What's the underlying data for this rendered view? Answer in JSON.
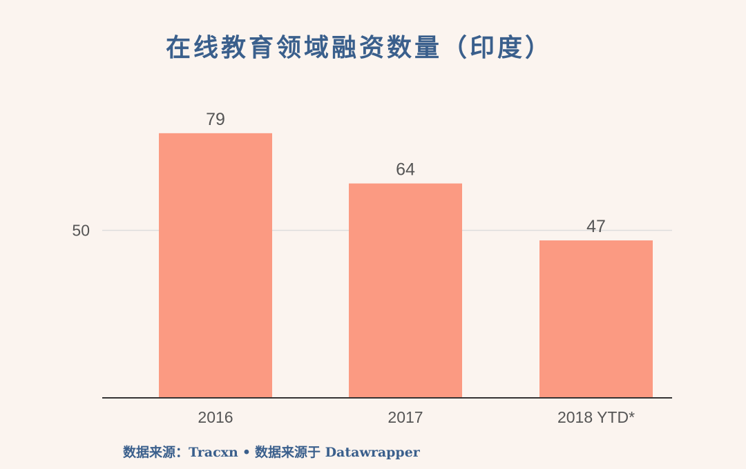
{
  "chart_data": {
    "type": "bar",
    "title": "在线教育领域融资数量（印度）",
    "categories": [
      "2016",
      "2017",
      "2018 YTD*"
    ],
    "values": [
      79,
      64,
      47
    ],
    "data_labels": [
      "79",
      "64",
      "47"
    ],
    "y_ticks": [
      50
    ],
    "ylim": [
      0,
      95
    ],
    "grid": true,
    "colors": {
      "bar": "#fb9a82",
      "text": "#3a5f8c",
      "gridline": "#dddddd",
      "axis": "#333333",
      "label": "#555555"
    }
  },
  "source": {
    "prefix": "数据来源：",
    "name": "Tracxn",
    "separator": "•",
    "credit": "数据来源于 Datawrapper"
  }
}
